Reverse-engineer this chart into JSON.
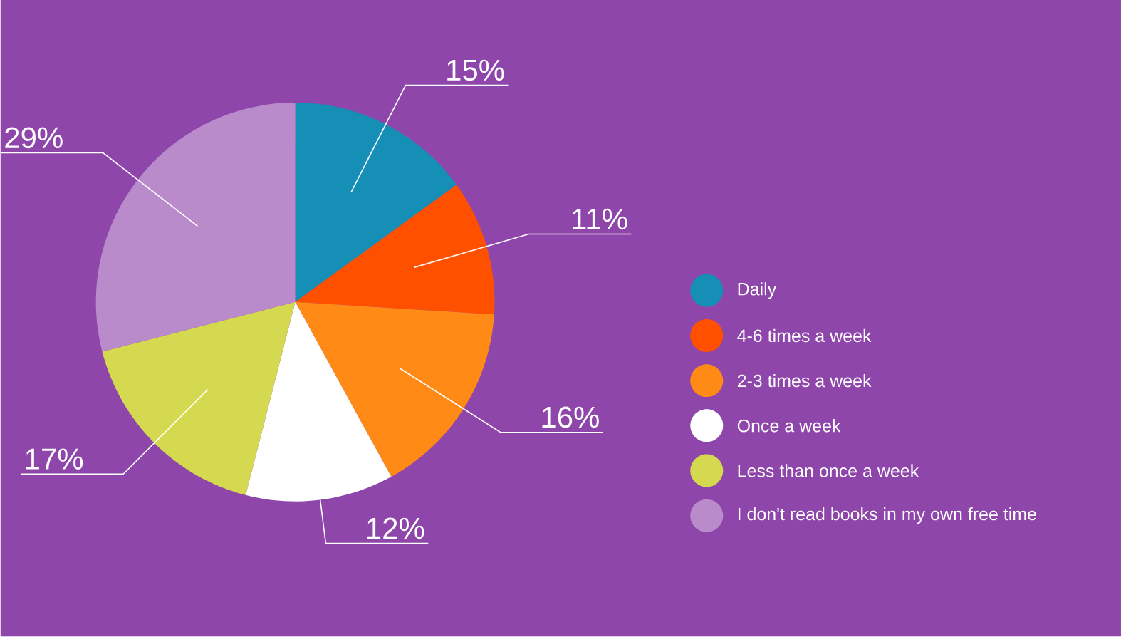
{
  "chart_data": {
    "type": "pie",
    "categories": [
      "Daily",
      "4-6 times a week",
      "2-3 times a week",
      "Once a week",
      "Less than once a week",
      "I don't read books in my own free time"
    ],
    "values": [
      15,
      11,
      16,
      12,
      17,
      29
    ],
    "value_labels": [
      "15%",
      "11%",
      "16%",
      "12%",
      "17%",
      "29%"
    ],
    "colors": [
      "#168fb6",
      "#ff5000",
      "#ff8b16",
      "#ffffff",
      "#d5d94f",
      "#b98bca"
    ],
    "legend": "right"
  }
}
